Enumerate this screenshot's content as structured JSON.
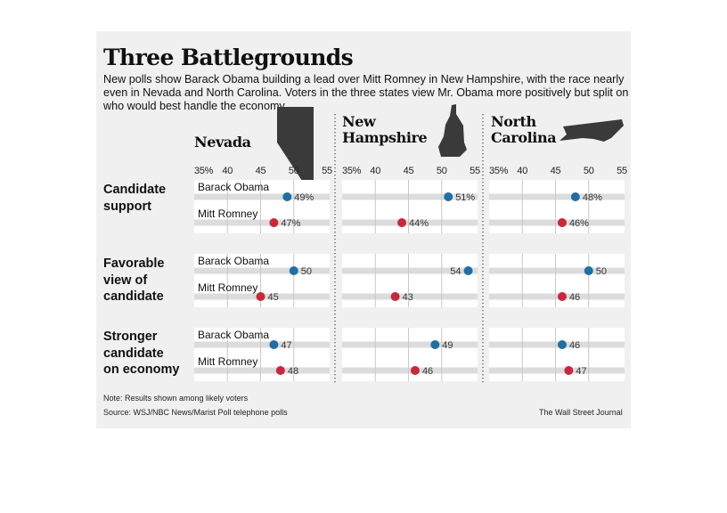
{
  "title": "Three Battlegrounds",
  "subtitle": "New polls show Barack Obama building a lead over Mitt Romney in New Hampshire, with the race nearly even in Nevada and North Carolina. Voters in the three states view Mr. Obama more positively but split on who would best handle the economy.",
  "note": "Note: Results shown among likely voters",
  "source": "Source: WSJ/NBC News/Marist Poll telephone polls",
  "credit": "The Wall Street Journal",
  "states": [
    "Nevada",
    "New Hampshire",
    "North Carolina"
  ],
  "state_labels": {
    "nevada": "Nevada",
    "new_hampshire": [
      "New",
      "Hampshire"
    ],
    "north_carolina": [
      "North",
      "Carolina"
    ]
  },
  "metrics": [
    "Candidate support",
    "Favorable view of candidate",
    "Stronger candidate on economy"
  ],
  "metric_labels": {
    "support": [
      "Candidate",
      "support"
    ],
    "favorable": [
      "Favorable",
      "view of",
      "candidate"
    ],
    "economy": [
      "Stronger",
      "candidate",
      "on economy"
    ]
  },
  "candidates": [
    "Barack Obama",
    "Mitt Romney"
  ],
  "colors": {
    "obama": "#1f6fa5",
    "romney": "#c8283a",
    "bar": "#dcdcdc",
    "panel": "#f0f0f0"
  },
  "chart_data": {
    "type": "dot",
    "axis": {
      "ticks": [
        35,
        40,
        45,
        50,
        55
      ],
      "tick_labels": [
        "35%",
        "40",
        "45",
        "50",
        "55"
      ],
      "range": [
        35,
        55
      ]
    },
    "series": [
      {
        "name": "Barack Obama",
        "color": "#1f6fa5"
      },
      {
        "name": "Mitt Romney",
        "color": "#c8283a"
      }
    ],
    "panels": [
      {
        "state": "Nevada",
        "rows": [
          {
            "metric": "Candidate support",
            "obama": 49,
            "romney": 47,
            "obama_label": "49%",
            "romney_label": "47%"
          },
          {
            "metric": "Favorable view of candidate",
            "obama": 50,
            "romney": 45,
            "obama_label": "50",
            "romney_label": "45"
          },
          {
            "metric": "Stronger candidate on economy",
            "obama": 47,
            "romney": 48,
            "obama_label": "47",
            "romney_label": "48"
          }
        ]
      },
      {
        "state": "New Hampshire",
        "rows": [
          {
            "metric": "Candidate support",
            "obama": 51,
            "romney": 44,
            "obama_label": "51%",
            "romney_label": "44%"
          },
          {
            "metric": "Favorable view of candidate",
            "obama": 54,
            "romney": 43,
            "obama_label": "54",
            "romney_label": "43"
          },
          {
            "metric": "Stronger candidate on economy",
            "obama": 49,
            "romney": 46,
            "obama_label": "49",
            "romney_label": "46"
          }
        ]
      },
      {
        "state": "North Carolina",
        "rows": [
          {
            "metric": "Candidate support",
            "obama": 48,
            "romney": 46,
            "obama_label": "48%",
            "romney_label": "46%"
          },
          {
            "metric": "Favorable view of candidate",
            "obama": 50,
            "romney": 46,
            "obama_label": "50",
            "romney_label": "46"
          },
          {
            "metric": "Stronger candidate on economy",
            "obama": 46,
            "romney": 47,
            "obama_label": "46",
            "romney_label": "47"
          }
        ]
      }
    ]
  }
}
